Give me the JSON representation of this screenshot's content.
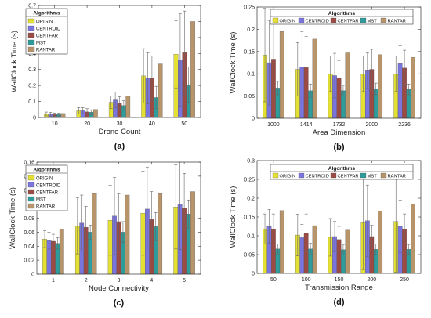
{
  "colors": {
    "ORIGIN": "#e3df33",
    "CENTROID": "#7a74dd",
    "CENTFAR": "#9b4a44",
    "MST": "#2d9c9a",
    "RANTAR": "#b8946a"
  },
  "chart_data": [
    {
      "type": "bar",
      "panel_label": "(a)",
      "xlabel": "Drone Count",
      "ylabel": "WallClock Time (s)",
      "categories": [
        "10",
        "20",
        "30",
        "40",
        "50"
      ],
      "ylim": [
        0,
        0.7
      ],
      "yticks": [
        "0",
        "0.1",
        "0.2",
        "0.3",
        "0.4",
        "0.5",
        "0.6",
        "0.7"
      ],
      "legend": {
        "title": "Algorithms",
        "placement": "top-left",
        "layout": "vertical"
      },
      "series": [
        {
          "name": "ORIGIN",
          "values": [
            0.022,
            0.042,
            0.095,
            0.26,
            0.395
          ],
          "errors": [
            0.012,
            0.02,
            0.04,
            0.17,
            0.21
          ]
        },
        {
          "name": "CENTROID",
          "values": [
            0.02,
            0.042,
            0.11,
            0.245,
            0.36
          ],
          "errors": [
            0.012,
            0.02,
            0.05,
            0.16,
            0.29
          ]
        },
        {
          "name": "CENTFAR",
          "values": [
            0.018,
            0.035,
            0.09,
            0.245,
            0.405
          ],
          "errors": [
            0.01,
            0.02,
            0.04,
            0.14,
            0.26
          ]
        },
        {
          "name": "MST",
          "values": [
            0.018,
            0.033,
            0.075,
            0.125,
            0.205
          ],
          "errors": [
            0.01,
            0.015,
            0.03,
            0.07,
            0.11
          ]
        },
        {
          "name": "RANTAR",
          "values": [
            0.025,
            0.05,
            0.135,
            0.335,
            0.6
          ],
          "errors": [
            0,
            0,
            0,
            0,
            0
          ]
        }
      ]
    },
    {
      "type": "bar",
      "panel_label": "(b)",
      "xlabel": "Area Dimension",
      "ylabel": "WallClock Time (s)",
      "categories": [
        "1000",
        "1414",
        "1732",
        "2000",
        "2236"
      ],
      "ylim": [
        0,
        0.25
      ],
      "yticks": [
        "0",
        "0.05",
        "0.1",
        "0.15",
        "0.2",
        "0.25"
      ],
      "legend": {
        "title": "Algorithms",
        "placement": "top",
        "layout": "horizontal"
      },
      "series": [
        {
          "name": "ORIGIN",
          "values": [
            0.142,
            0.11,
            0.1,
            0.1,
            0.1
          ],
          "errors": [
            0.105,
            0.06,
            0.04,
            0.04,
            0.04
          ]
        },
        {
          "name": "CENTROID",
          "values": [
            0.125,
            0.115,
            0.096,
            0.107,
            0.123
          ],
          "errors": [
            0.095,
            0.08,
            0.05,
            0.04,
            0.04
          ]
        },
        {
          "name": "CENTFAR",
          "values": [
            0.133,
            0.114,
            0.09,
            0.11,
            0.113
          ],
          "errors": [
            0.09,
            0.07,
            0.04,
            0.045,
            0.04
          ]
        },
        {
          "name": "MST",
          "values": [
            0.068,
            0.062,
            0.062,
            0.066,
            0.065
          ],
          "errors": [
            0.015,
            0.015,
            0.012,
            0.013,
            0.012
          ]
        },
        {
          "name": "RANTAR",
          "values": [
            0.195,
            0.178,
            0.147,
            0.143,
            0.137
          ],
          "errors": [
            0,
            0,
            0,
            0,
            0
          ]
        }
      ]
    },
    {
      "type": "bar",
      "panel_label": "(c)",
      "xlabel": "Node Connectivity",
      "ylabel": "WallClock Time (s)",
      "categories": [
        "1",
        "2",
        "3",
        "4",
        "5"
      ],
      "ylim": [
        0,
        0.16
      ],
      "yticks": [
        "0",
        "0.02",
        "0.04",
        "0.06",
        "0.08",
        "0.1",
        "0.12",
        "0.14",
        "0.16"
      ],
      "legend": {
        "title": "Algorithms",
        "placement": "top-left",
        "layout": "vertical"
      },
      "series": [
        {
          "name": "ORIGIN",
          "values": [
            0.05,
            0.069,
            0.077,
            0.087,
            0.096
          ],
          "errors": [
            0.012,
            0.04,
            0.05,
            0.06,
            0.06
          ]
        },
        {
          "name": "CENTROID",
          "values": [
            0.048,
            0.073,
            0.083,
            0.093,
            0.1
          ],
          "errors": [
            0.012,
            0.04,
            0.055,
            0.06,
            0.065
          ]
        },
        {
          "name": "CENTFAR",
          "values": [
            0.047,
            0.067,
            0.075,
            0.078,
            0.094
          ],
          "errors": [
            0.01,
            0.03,
            0.04,
            0.04,
            0.05
          ]
        },
        {
          "name": "MST",
          "values": [
            0.044,
            0.06,
            0.06,
            0.068,
            0.086
          ],
          "errors": [
            0.008,
            0.01,
            0.015,
            0.02,
            0.02
          ]
        },
        {
          "name": "RANTAR",
          "values": [
            0.064,
            0.115,
            0.113,
            0.115,
            0.118
          ],
          "errors": [
            0,
            0,
            0,
            0,
            0
          ]
        }
      ]
    },
    {
      "type": "bar",
      "panel_label": "(d)",
      "xlabel": "Transmission Range",
      "ylabel": "WallClock Time (s)",
      "categories": [
        "50",
        "100",
        "150",
        "200",
        "250"
      ],
      "ylim": [
        0,
        0.3
      ],
      "yticks": [
        "0",
        "0.05",
        "0.1",
        "0.15",
        "0.2",
        "0.25",
        "0.3"
      ],
      "legend": {
        "title": "Algorithms",
        "placement": "top",
        "layout": "horizontal"
      },
      "series": [
        {
          "name": "ORIGIN",
          "values": [
            0.118,
            0.102,
            0.096,
            0.135,
            0.138
          ],
          "errors": [
            0.04,
            0.055,
            0.05,
            0.125,
            0.135
          ]
        },
        {
          "name": "CENTROID",
          "values": [
            0.125,
            0.095,
            0.098,
            0.14,
            0.125
          ],
          "errors": [
            0.045,
            0.035,
            0.04,
            0.095,
            0.07
          ]
        },
        {
          "name": "CENTFAR",
          "values": [
            0.118,
            0.108,
            0.09,
            0.098,
            0.118
          ],
          "errors": [
            0.04,
            0.05,
            0.035,
            0.03,
            0.04
          ]
        },
        {
          "name": "MST",
          "values": [
            0.065,
            0.065,
            0.063,
            0.064,
            0.064
          ],
          "errors": [
            0.013,
            0.015,
            0.014,
            0.014,
            0.013
          ]
        },
        {
          "name": "RANTAR",
          "values": [
            0.167,
            0.127,
            0.115,
            0.165,
            0.185
          ],
          "errors": [
            0,
            0,
            0,
            0,
            0
          ]
        }
      ]
    }
  ]
}
